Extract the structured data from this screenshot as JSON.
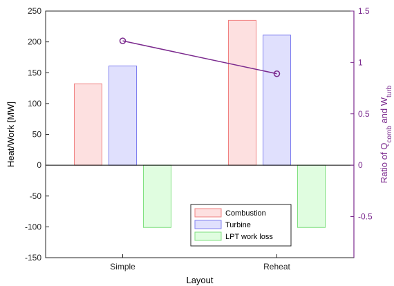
{
  "chart_data": {
    "type": "bar",
    "categories": [
      "Simple",
      "Reheat"
    ],
    "xlabel": "Layout",
    "ylabel": "Heat/Work [MW]",
    "ylim": [
      -150,
      250
    ],
    "yticks": [
      "250",
      "200",
      "150",
      "100",
      "50",
      "0",
      "-50",
      "-100",
      "-150"
    ],
    "yticks_values": [
      250,
      200,
      150,
      100,
      50,
      0,
      -50,
      -100,
      -150
    ],
    "y2label": {
      "prefix": "Ratio of Q",
      "sub1": "comb",
      "mid": " and W",
      "sub2": "turb"
    },
    "y2lim": [
      -0.9,
      1.5
    ],
    "y2ticks": [
      "1.5",
      "1",
      "0.5",
      "0",
      "-0.5"
    ],
    "y2ticks_values": [
      1.5,
      1,
      0.5,
      0,
      -0.5
    ],
    "series": [
      {
        "name": "Combustion",
        "values": [
          132,
          235
        ],
        "fill": "#fde0e0",
        "stroke": "#f08080"
      },
      {
        "name": "Turbine",
        "values": [
          161,
          211
        ],
        "fill": "#e0e0fd",
        "stroke": "#8080f0"
      },
      {
        "name": "LPT work loss",
        "values": [
          -101,
          -101
        ],
        "fill": "#e0fde0",
        "stroke": "#80e080"
      }
    ],
    "ratio_line": {
      "values": [
        1.21,
        0.89
      ],
      "color": "#7b2a8e",
      "axis": "right",
      "marker": "circle"
    },
    "legend": {
      "placement": "bottom-center"
    },
    "grid": false,
    "colors": {
      "axis_left": "#262626",
      "axis_right": "#7b2a8e"
    }
  }
}
